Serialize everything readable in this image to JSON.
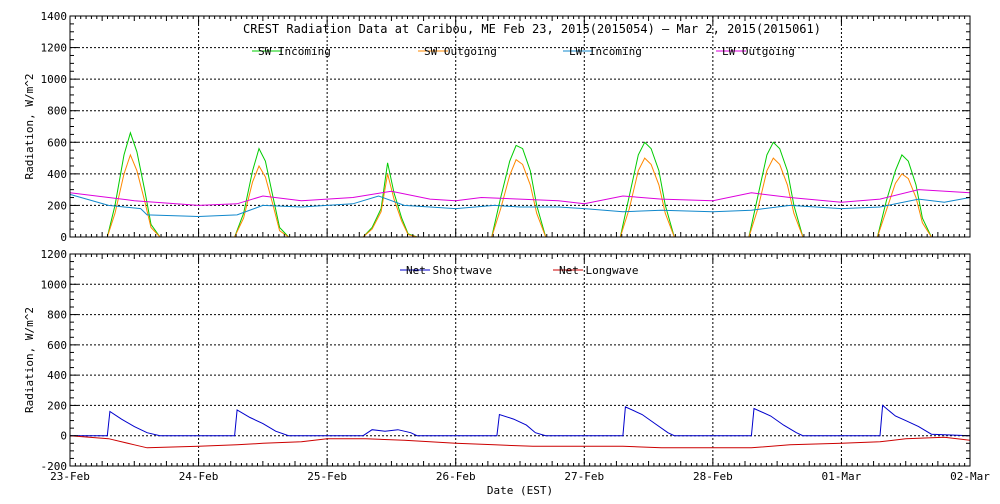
{
  "chart_data": {
    "title": "CREST Radiation Data at Caribou, ME   Feb 23, 2015(2015054) – Mar  2, 2015(2015061)",
    "xlabel": "Date (EST)",
    "x_ticks": [
      "23-Feb",
      "24-Feb",
      "25-Feb",
      "26-Feb",
      "27-Feb",
      "28-Feb",
      "01-Mar",
      "02-Mar"
    ],
    "xlim": [
      0,
      7
    ],
    "panels": [
      {
        "ylabel": "Radiation, W/m^2",
        "ylim": [
          0,
          1400
        ],
        "yticks": [
          0,
          200,
          400,
          600,
          800,
          1000,
          1200,
          1400
        ],
        "type": "line",
        "legend": "top-center",
        "series": [
          {
            "name": "SW Incoming",
            "color": "#00cc00",
            "x": [
              0.0,
              0.29,
              0.35,
              0.42,
              0.47,
              0.52,
              0.58,
              0.63,
              0.7,
              1.0,
              1.28,
              1.35,
              1.42,
              1.47,
              1.52,
              1.58,
              1.63,
              1.7,
              2.0,
              2.28,
              2.35,
              2.42,
              2.47,
              2.52,
              2.58,
              2.63,
              2.7,
              3.0,
              3.28,
              3.35,
              3.42,
              3.47,
              3.52,
              3.58,
              3.63,
              3.7,
              4.0,
              4.28,
              4.35,
              4.42,
              4.47,
              4.52,
              4.58,
              4.63,
              4.7,
              5.0,
              5.28,
              5.35,
              5.42,
              5.47,
              5.52,
              5.58,
              5.63,
              5.7,
              6.0,
              6.28,
              6.35,
              6.42,
              6.47,
              6.52,
              6.58,
              6.63,
              6.7,
              7.0
            ],
            "values": [
              0,
              0,
              200,
              520,
              660,
              540,
              300,
              80,
              0,
              0,
              0,
              150,
              420,
              560,
              480,
              250,
              60,
              0,
              0,
              0,
              60,
              180,
              470,
              280,
              120,
              20,
              0,
              0,
              0,
              250,
              480,
              580,
              560,
              420,
              200,
              0,
              0,
              0,
              260,
              520,
              600,
              560,
              420,
              200,
              0,
              0,
              0,
              260,
              520,
              600,
              560,
              420,
              200,
              0,
              0,
              0,
              230,
              420,
              520,
              480,
              330,
              120,
              0,
              0
            ]
          },
          {
            "name": "SW Outgoing",
            "color": "#ff8800",
            "x": [
              0.0,
              0.29,
              0.35,
              0.42,
              0.47,
              0.52,
              0.58,
              0.63,
              0.7,
              1.0,
              1.28,
              1.35,
              1.42,
              1.47,
              1.52,
              1.58,
              1.63,
              1.7,
              2.0,
              2.28,
              2.35,
              2.42,
              2.47,
              2.52,
              2.58,
              2.63,
              2.7,
              3.0,
              3.28,
              3.35,
              3.42,
              3.47,
              3.52,
              3.58,
              3.63,
              3.7,
              4.0,
              4.28,
              4.35,
              4.42,
              4.47,
              4.52,
              4.58,
              4.63,
              4.7,
              5.0,
              5.28,
              5.35,
              5.42,
              5.47,
              5.52,
              5.58,
              5.63,
              5.7,
              6.0,
              6.28,
              6.35,
              6.42,
              6.47,
              6.52,
              6.58,
              6.63,
              6.7,
              7.0
            ],
            "values": [
              0,
              0,
              150,
              400,
              520,
              420,
              230,
              60,
              0,
              0,
              0,
              120,
              350,
              450,
              380,
              200,
              40,
              0,
              0,
              0,
              50,
              160,
              400,
              240,
              100,
              15,
              0,
              0,
              0,
              180,
              390,
              490,
              460,
              330,
              150,
              0,
              0,
              0,
              180,
              420,
              500,
              460,
              330,
              150,
              0,
              0,
              0,
              180,
              420,
              500,
              460,
              330,
              150,
              0,
              0,
              0,
              170,
              340,
              400,
              370,
              250,
              90,
              0,
              0
            ]
          },
          {
            "name": "LW Incoming",
            "color": "#1188cc",
            "x": [
              0.0,
              0.3,
              0.55,
              0.6,
              1.0,
              1.3,
              1.5,
              1.8,
              2.2,
              2.4,
              2.6,
              3.0,
              3.3,
              3.5,
              3.8,
              4.0,
              4.3,
              4.6,
              5.0,
              5.3,
              5.6,
              6.0,
              6.3,
              6.6,
              6.8,
              7.0
            ],
            "values": [
              270,
              200,
              180,
              140,
              130,
              140,
              200,
              190,
              210,
              260,
              200,
              180,
              200,
              190,
              190,
              180,
              160,
              170,
              160,
              170,
              200,
              180,
              190,
              240,
              220,
              250
            ]
          },
          {
            "name": "LW Outgoing",
            "color": "#dd00dd",
            "x": [
              0.0,
              0.5,
              1.0,
              1.3,
              1.5,
              1.8,
              2.2,
              2.5,
              2.8,
              3.0,
              3.2,
              3.5,
              3.8,
              4.0,
              4.3,
              4.6,
              5.0,
              5.3,
              5.6,
              6.0,
              6.3,
              6.6,
              7.0
            ],
            "values": [
              280,
              230,
              200,
              210,
              260,
              230,
              250,
              290,
              240,
              230,
              250,
              240,
              230,
              210,
              260,
              240,
              230,
              280,
              250,
              220,
              240,
              300,
              280
            ]
          }
        ]
      },
      {
        "ylabel": "Radiation, W/m^2",
        "ylim": [
          -200,
          1200
        ],
        "yticks": [
          -200,
          0,
          200,
          400,
          600,
          800,
          1000,
          1200
        ],
        "type": "line",
        "legend": "top-center",
        "series": [
          {
            "name": "Net Shortwave",
            "color": "#0000cc",
            "x": [
              0.0,
              0.29,
              0.31,
              0.4,
              0.5,
              0.6,
              0.7,
              1.0,
              1.28,
              1.3,
              1.4,
              1.5,
              1.6,
              1.7,
              2.0,
              2.28,
              2.35,
              2.45,
              2.55,
              2.65,
              2.7,
              3.0,
              3.32,
              3.34,
              3.45,
              3.55,
              3.62,
              3.7,
              4.0,
              4.3,
              4.32,
              4.45,
              4.55,
              4.65,
              4.7,
              5.0,
              5.3,
              5.32,
              5.45,
              5.55,
              5.65,
              5.7,
              6.0,
              6.3,
              6.32,
              6.42,
              6.5,
              6.6,
              6.7,
              7.0
            ],
            "values": [
              0,
              0,
              160,
              110,
              60,
              20,
              0,
              0,
              0,
              170,
              120,
              80,
              30,
              0,
              0,
              0,
              40,
              30,
              40,
              20,
              0,
              0,
              0,
              140,
              110,
              70,
              20,
              0,
              0,
              0,
              190,
              140,
              80,
              20,
              0,
              0,
              0,
              180,
              130,
              70,
              20,
              0,
              0,
              0,
              200,
              130,
              100,
              60,
              10,
              0
            ]
          },
          {
            "name": "Net Longwave",
            "color": "#cc0000",
            "x": [
              0.0,
              0.3,
              0.5,
              0.6,
              1.0,
              1.3,
              1.5,
              1.8,
              2.0,
              2.3,
              2.6,
              3.0,
              3.3,
              3.6,
              4.0,
              4.3,
              4.6,
              5.0,
              5.3,
              5.6,
              6.0,
              6.3,
              6.5,
              6.8,
              7.0
            ],
            "values": [
              0,
              -20,
              -60,
              -80,
              -70,
              -60,
              -50,
              -40,
              -20,
              -20,
              -30,
              -50,
              -60,
              -70,
              -70,
              -70,
              -80,
              -80,
              -80,
              -60,
              -50,
              -40,
              -20,
              -10,
              -30
            ]
          }
        ]
      }
    ]
  }
}
